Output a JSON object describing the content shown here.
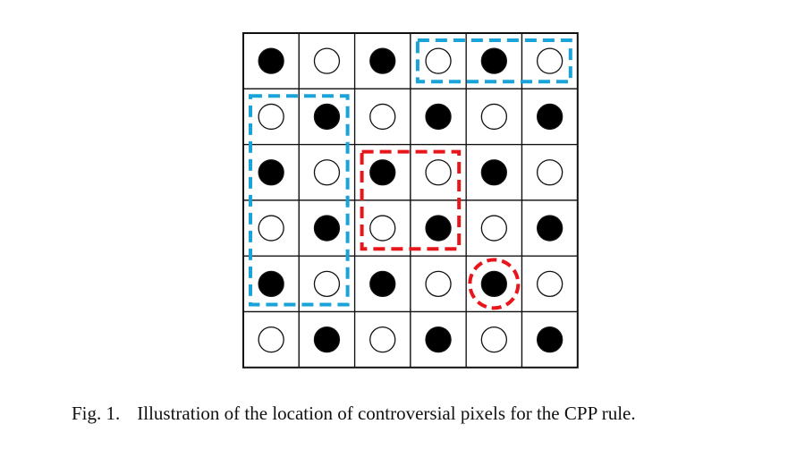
{
  "figure": {
    "rows": 6,
    "cols": 6,
    "pattern": [
      [
        "black",
        "white",
        "black",
        "white",
        "black",
        "white"
      ],
      [
        "white",
        "black",
        "white",
        "black",
        "white",
        "black"
      ],
      [
        "black",
        "white",
        "black",
        "white",
        "black",
        "white"
      ],
      [
        "white",
        "black",
        "white",
        "black",
        "white",
        "black"
      ],
      [
        "black",
        "white",
        "black",
        "white",
        "black",
        "white"
      ],
      [
        "white",
        "black",
        "white",
        "black",
        "white",
        "black"
      ]
    ],
    "highlights": [
      {
        "kind": "rect",
        "color": "#1aa3d8",
        "row_start": 0,
        "row_end": 0,
        "col_start": 3,
        "col_end": 5
      },
      {
        "kind": "rect",
        "color": "#1aa3d8",
        "row_start": 1,
        "row_end": 4,
        "col_start": 0,
        "col_end": 1
      },
      {
        "kind": "rect",
        "color": "#e8161b",
        "row_start": 2,
        "row_end": 3,
        "col_start": 2,
        "col_end": 3
      },
      {
        "kind": "circle",
        "color": "#e8161b",
        "row": 4,
        "col": 4
      }
    ]
  },
  "caption": {
    "label": "Fig. 1.",
    "text": "Illustration of the location of controversial pixels for the CPP rule."
  }
}
